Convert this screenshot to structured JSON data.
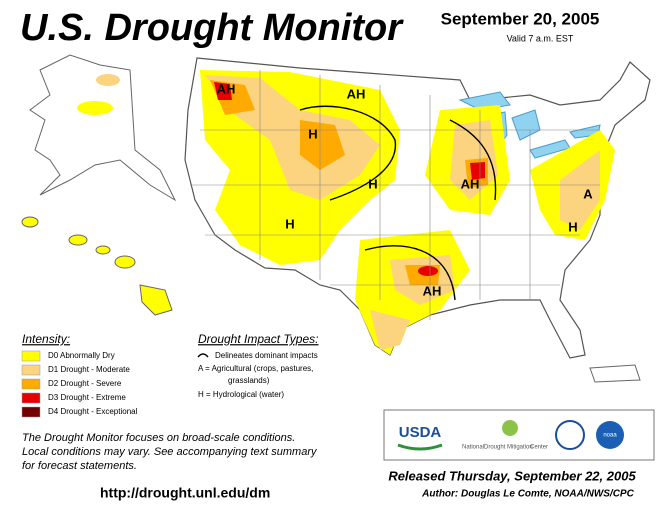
{
  "header": {
    "title": "U.S. Drought Monitor",
    "date": "September 20, 2005",
    "valid": "Valid 7 a.m. EST"
  },
  "legend": {
    "title": "Intensity:",
    "items": [
      {
        "label": "D0 Abnormally Dry",
        "color": "#ffff00"
      },
      {
        "label": "D1 Drought - Moderate",
        "color": "#fcd37f"
      },
      {
        "label": "D2 Drought - Severe",
        "color": "#ffaa00"
      },
      {
        "label": "D3 Drought - Extreme",
        "color": "#e60000"
      },
      {
        "label": "D4 Drought - Exceptional",
        "color": "#730000"
      }
    ]
  },
  "impact": {
    "title": "Drought Impact Types:",
    "items": [
      "Delineates dominant impacts",
      "A = Agricultural (crops, pastures,",
      "grasslands)",
      "H = Hydrological (water)"
    ]
  },
  "map_labels": [
    "AH",
    "AH",
    "H",
    "H",
    "AH",
    "H",
    "A",
    "H",
    "AH"
  ],
  "note": [
    "The Drought Monitor focuses on broad-scale conditions.",
    "Local conditions may vary. See accompanying text summary",
    "for forecast statements."
  ],
  "url": "http://drought.unl.edu/dm",
  "logos": {
    "usda": "USDA",
    "ndmc_1": "National",
    "ndmc_2": "Drought Mitigation",
    "ndmc_3": "Center",
    "noaa": "noaa"
  },
  "released": "Released Thursday, September 22, 2005",
  "author": "Author: Douglas Le Comte, NOAA/NWS/CPC"
}
